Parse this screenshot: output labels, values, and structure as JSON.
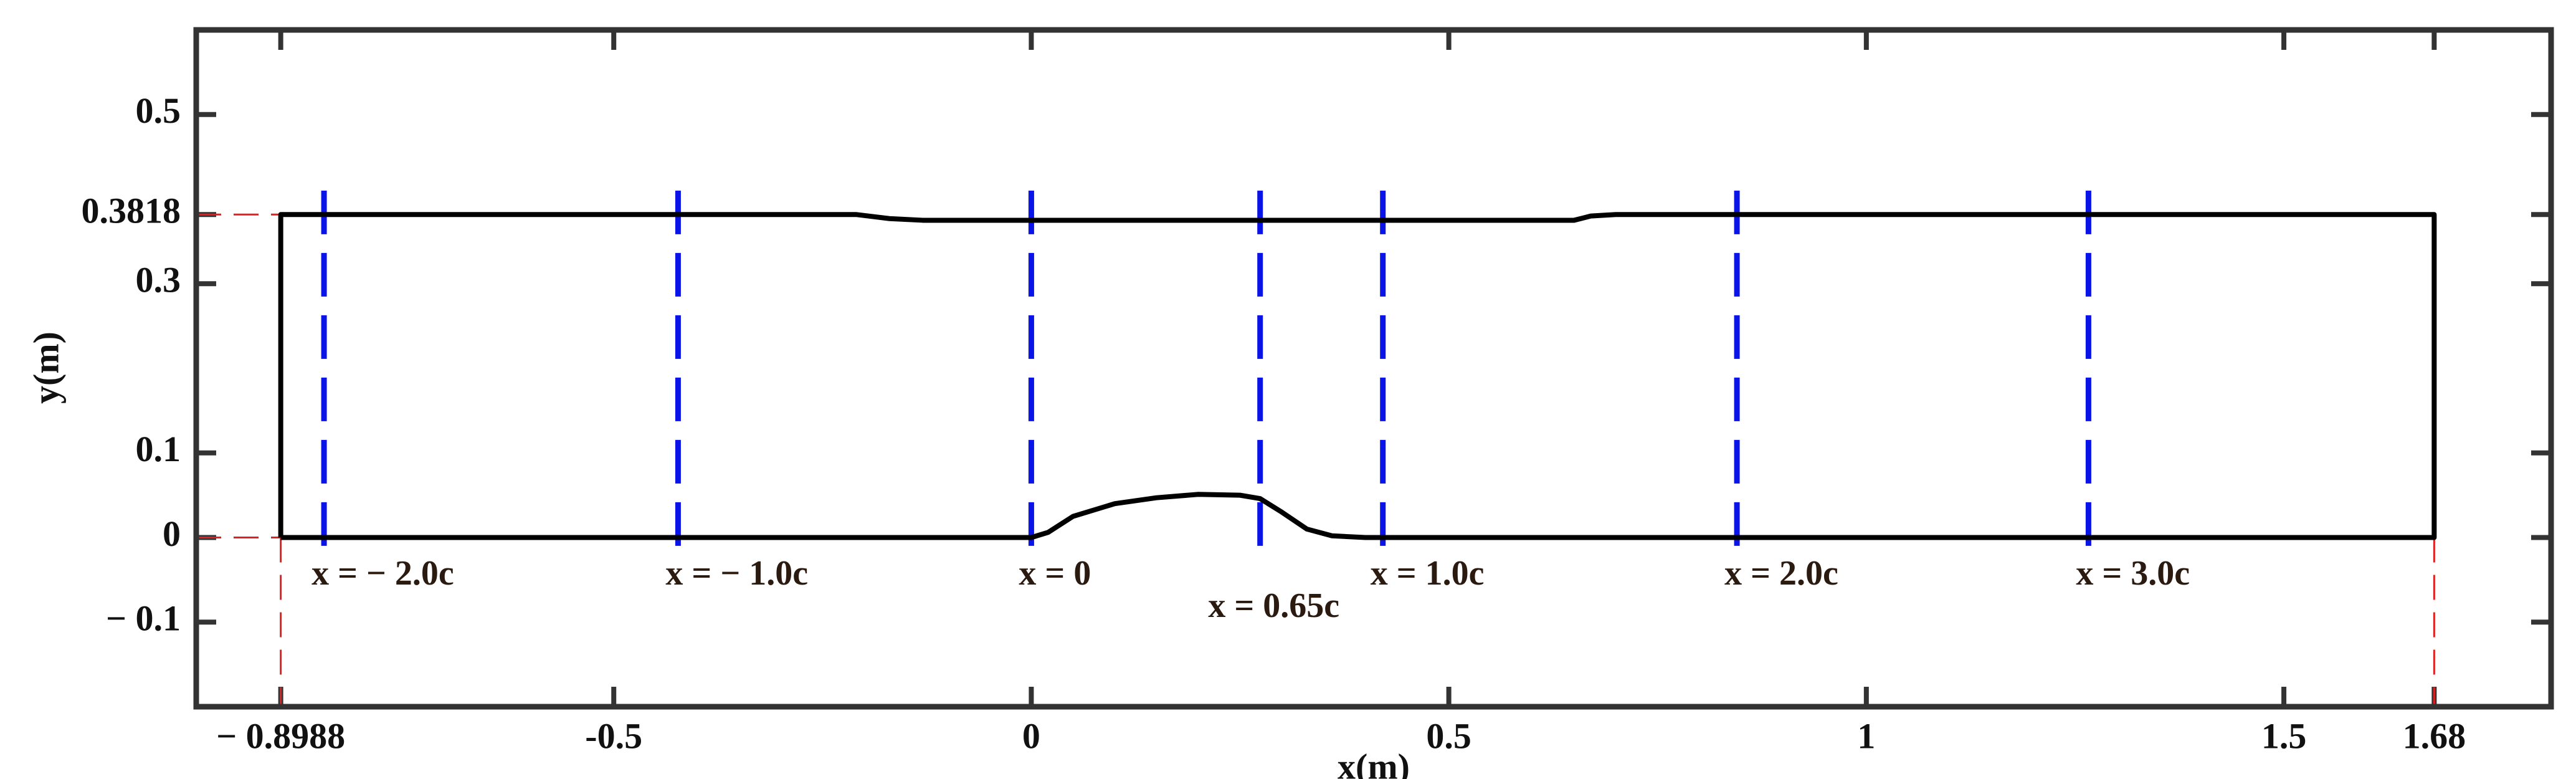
{
  "chart_data": {
    "type": "line",
    "xlabel": "x(m)",
    "ylabel": "y(m)",
    "xlim": [
      -1.0,
      1.82
    ],
    "ylim": [
      -0.2,
      0.6
    ],
    "xticks": [
      {
        "value": -0.8988,
        "label": "− 0.8988"
      },
      -0.5,
      0,
      0.5,
      1,
      1.5,
      1.68
    ],
    "yticks": [
      {
        "value": -0.1,
        "label": "− 0.1"
      },
      0,
      0.1,
      0.3,
      0.3818,
      0.5
    ],
    "color": "#000000",
    "series": [
      {
        "color": "#000000",
        "x": [
          -0.8988,
          0,
          0.02,
          0.05,
          0.1,
          0.15,
          0.2,
          0.25,
          0.274,
          0.3,
          0.33,
          0.36,
          0.4,
          1.68,
          1.68,
          0.7,
          0.67,
          0.65,
          -0.13,
          -0.17,
          -0.21,
          -0.8988,
          -0.8988
        ],
        "values": [
          0,
          0,
          0.006,
          0.025,
          0.04,
          0.047,
          0.051,
          0.05,
          0.046,
          0.03,
          0.01,
          0.002,
          0,
          0,
          0.3818,
          0.3818,
          0.38,
          0.375,
          0.375,
          0.377,
          0.3818,
          0.3818,
          0
        ]
      }
    ],
    "stations": {
      "color": "#0a14e6",
      "x": [
        -0.847,
        -0.423,
        0,
        0.274,
        0.421,
        0.845,
        1.266
      ],
      "labels": [
        "x = − 2.0c",
        "x = − 1.0c",
        "x = 0",
        "x = 0.65c",
        "x = 1.0c",
        "x = 2.0c",
        "x = 3.0c"
      ]
    },
    "reference_color": "#e02020"
  }
}
